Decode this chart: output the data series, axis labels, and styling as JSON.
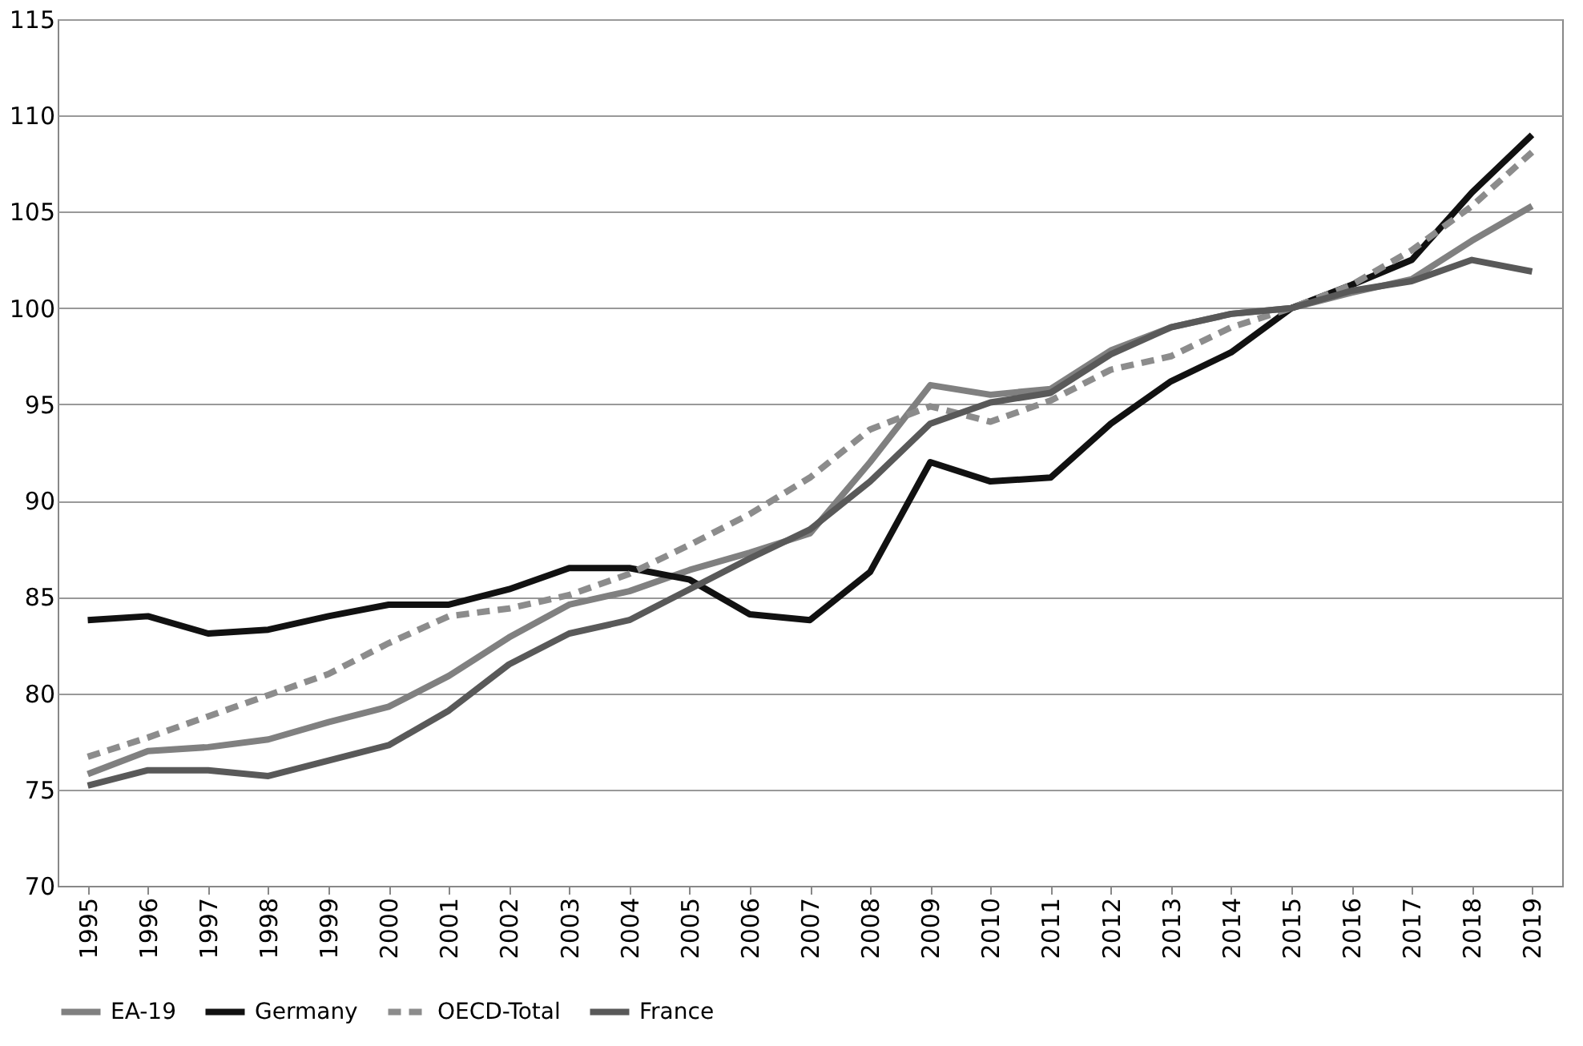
{
  "chart_data": {
    "type": "line",
    "categories": [
      "1995",
      "1996",
      "1997",
      "1998",
      "1999",
      "2000",
      "2001",
      "2002",
      "2003",
      "2004",
      "2005",
      "2006",
      "2007",
      "2008",
      "2009",
      "2010",
      "2011",
      "2012",
      "2013",
      "2014",
      "2015",
      "2016",
      "2017",
      "2018",
      "2019"
    ],
    "series": [
      {
        "name": "EA-19",
        "color": "#808080",
        "line_style": "solid",
        "values": [
          75.8,
          77.0,
          77.2,
          77.6,
          78.5,
          79.3,
          80.9,
          82.9,
          84.6,
          85.3,
          86.4,
          87.3,
          88.3,
          92.0,
          96.0,
          95.5,
          95.8,
          97.8,
          99.0,
          99.7,
          100,
          100.8,
          101.5,
          103.5,
          105.3
        ]
      },
      {
        "name": "Germany",
        "color": "#111111",
        "line_style": "solid",
        "values": [
          83.8,
          84.0,
          83.1,
          83.3,
          84.0,
          84.6,
          84.6,
          85.4,
          86.5,
          86.5,
          85.9,
          84.1,
          83.8,
          86.3,
          92.0,
          91.0,
          91.2,
          94.0,
          96.2,
          97.7,
          100,
          101.2,
          102.5,
          106.0,
          109.0
        ]
      },
      {
        "name": "OECD-Total",
        "color": "#8c8c8c",
        "line_style": "dashed",
        "values": [
          76.7,
          77.7,
          78.8,
          79.9,
          81.0,
          82.6,
          84.0,
          84.4,
          85.1,
          86.2,
          87.7,
          89.3,
          91.2,
          93.7,
          94.9,
          94.1,
          95.2,
          96.8,
          97.5,
          99.0,
          100,
          101.2,
          103.0,
          105.3,
          108.1
        ]
      },
      {
        "name": "France",
        "color": "#595959",
        "line_style": "solid",
        "values": [
          75.2,
          76.0,
          76.0,
          75.7,
          76.5,
          77.3,
          79.1,
          81.5,
          83.1,
          83.8,
          85.4,
          87.0,
          88.5,
          91.0,
          94.0,
          95.1,
          95.6,
          97.6,
          99.0,
          99.7,
          100,
          100.9,
          101.4,
          102.5,
          101.9
        ]
      }
    ],
    "ylim": [
      70,
      115
    ],
    "yticks": [
      70,
      75,
      80,
      85,
      90,
      95,
      100,
      105,
      110,
      115
    ],
    "grid": "y",
    "legend": "bottom",
    "marker": "none"
  }
}
